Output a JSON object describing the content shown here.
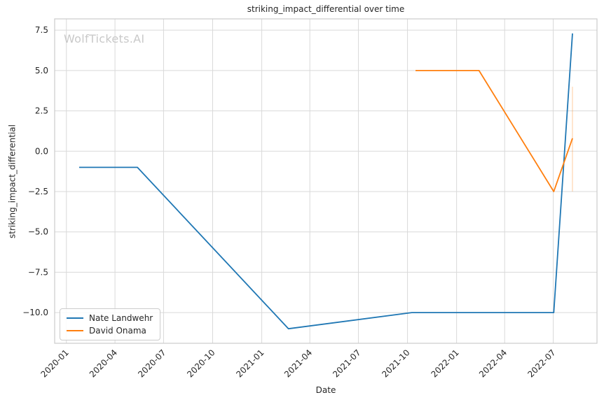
{
  "figure": {
    "background": "#ffffff",
    "grid_color": "#d9d9d9",
    "spine_color": "#cbcbcb",
    "text_color": "#262626"
  },
  "watermark": {
    "text": "WolfTickets.AI",
    "color": "#c9c9c9"
  },
  "chart_data": {
    "type": "line",
    "title": "striking_impact_differential over time",
    "xlabel": "Date",
    "ylabel": "striking_impact_differential",
    "grid": true,
    "legend_position": "lower left",
    "xlim": [
      "2019-12-10",
      "2022-09-21"
    ],
    "ylim": [
      -11.9,
      8.2
    ],
    "x_ticks": [
      {
        "label": "2020-01"
      },
      {
        "label": "2020-04"
      },
      {
        "label": "2020-07"
      },
      {
        "label": "2020-10"
      },
      {
        "label": "2021-01"
      },
      {
        "label": "2021-04"
      },
      {
        "label": "2021-07"
      },
      {
        "label": "2021-10"
      },
      {
        "label": "2022-01"
      },
      {
        "label": "2022-04"
      },
      {
        "label": "2022-07"
      }
    ],
    "y_ticks": [
      {
        "label": "7.5",
        "value": 7.5
      },
      {
        "label": "5.0",
        "value": 5.0
      },
      {
        "label": "2.5",
        "value": 2.5
      },
      {
        "label": "0.0",
        "value": 0.0
      },
      {
        "label": "−2.5",
        "value": -2.5
      },
      {
        "label": "−5.0",
        "value": -5.0
      },
      {
        "label": "−7.5",
        "value": -7.5
      },
      {
        "label": "−10.0",
        "value": -10.0
      }
    ],
    "series": [
      {
        "name": "Nate Landwehr",
        "color": "#1f77b4",
        "points": [
          [
            "2020-01-25",
            -1.0
          ],
          [
            "2020-05-13",
            -1.0
          ],
          [
            "2021-02-20",
            -11.0
          ],
          [
            "2021-10-09",
            -10.0
          ],
          [
            "2022-07-02",
            -10.0
          ],
          [
            "2022-08-06",
            7.3
          ]
        ]
      },
      {
        "name": "David Onama",
        "color": "#ff7f0e",
        "points": [
          [
            "2021-10-16",
            5.0
          ],
          [
            "2022-02-12",
            5.0
          ],
          [
            "2022-07-02",
            -2.5
          ],
          [
            "2022-08-06",
            0.8
          ]
        ],
        "error_bar_final": {
          "x": "2022-08-06",
          "low": -2.5,
          "high": 4.0,
          "opacity": 0.25
        }
      }
    ]
  }
}
